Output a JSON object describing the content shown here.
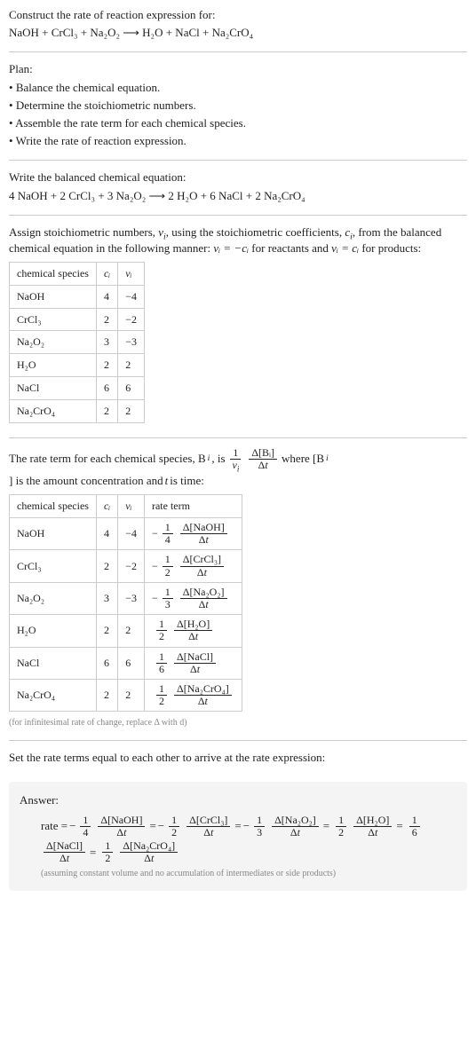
{
  "intro": {
    "line1": "Construct the rate of reaction expression for:",
    "reaction": "NaOH + CrCl₃ + Na₂O₂ ⟶ H₂O + NaCl + Na₂CrO₄"
  },
  "plan": {
    "heading": "Plan:",
    "items": [
      "Balance the chemical equation.",
      "Determine the stoichiometric numbers.",
      "Assemble the rate term for each chemical species.",
      "Write the rate of reaction expression."
    ]
  },
  "balanced": {
    "heading": "Write the balanced chemical equation:",
    "equation": "4 NaOH + 2 CrCl₃ + 3 Na₂O₂ ⟶ 2 H₂O + 6 NaCl + 2 Na₂CrO₄"
  },
  "stoich": {
    "text_a": "Assign stoichiometric numbers, ",
    "nu": "ν",
    "sub_i": "i",
    "text_b": ", using the stoichiometric coefficients, ",
    "c": "c",
    "text_c": ", from the balanced chemical equation in the following manner: ",
    "rel_react": "νᵢ = −cᵢ",
    "text_d": " for reactants and ",
    "rel_prod": "νᵢ = cᵢ",
    "text_e": " for products:",
    "headers": [
      "chemical species",
      "cᵢ",
      "νᵢ"
    ],
    "rows": [
      {
        "species": "NaOH",
        "c": "4",
        "nu": "−4"
      },
      {
        "species": "CrCl₃",
        "c": "2",
        "nu": "−2"
      },
      {
        "species": "Na₂O₂",
        "c": "3",
        "nu": "−3"
      },
      {
        "species": "H₂O",
        "c": "2",
        "nu": "2"
      },
      {
        "species": "NaCl",
        "c": "6",
        "nu": "6"
      },
      {
        "species": "Na₂CrO₄",
        "c": "2",
        "nu": "2"
      }
    ]
  },
  "rateterm": {
    "text_a": "The rate term for each chemical species, B",
    "text_b": ", is ",
    "one": "1",
    "delta_b": "Δ[Bᵢ]",
    "delta_t": "Δt",
    "text_c": " where [B",
    "text_d": "] is the amount concentration and ",
    "t": "t",
    "text_e": " is time:",
    "headers": [
      "chemical species",
      "cᵢ",
      "νᵢ",
      "rate term"
    ],
    "rows": [
      {
        "species": "NaOH",
        "c": "4",
        "nu": "−4",
        "sign": "−",
        "fn": "1",
        "fd": "4",
        "dn": "Δ[NaOH]",
        "dd": "Δt"
      },
      {
        "species": "CrCl₃",
        "c": "2",
        "nu": "−2",
        "sign": "−",
        "fn": "1",
        "fd": "2",
        "dn": "Δ[CrCl₃]",
        "dd": "Δt"
      },
      {
        "species": "Na₂O₂",
        "c": "3",
        "nu": "−3",
        "sign": "−",
        "fn": "1",
        "fd": "3",
        "dn": "Δ[Na₂O₂]",
        "dd": "Δt"
      },
      {
        "species": "H₂O",
        "c": "2",
        "nu": "2",
        "sign": "",
        "fn": "1",
        "fd": "2",
        "dn": "Δ[H₂O]",
        "dd": "Δt"
      },
      {
        "species": "NaCl",
        "c": "6",
        "nu": "6",
        "sign": "",
        "fn": "1",
        "fd": "6",
        "dn": "Δ[NaCl]",
        "dd": "Δt"
      },
      {
        "species": "Na₂CrO₄",
        "c": "2",
        "nu": "2",
        "sign": "",
        "fn": "1",
        "fd": "2",
        "dn": "Δ[Na₂CrO₄]",
        "dd": "Δt"
      }
    ],
    "note": "(for infinitesimal rate of change, replace Δ with d)"
  },
  "final": {
    "heading": "Set the rate terms equal to each other to arrive at the rate expression:"
  },
  "answer": {
    "title": "Answer:",
    "rate_label": "rate = ",
    "eq": " = ",
    "terms": [
      {
        "sign": "−",
        "fn": "1",
        "fd": "4",
        "dn": "Δ[NaOH]",
        "dd": "Δt"
      },
      {
        "sign": "−",
        "fn": "1",
        "fd": "2",
        "dn": "Δ[CrCl₃]",
        "dd": "Δt"
      },
      {
        "sign": "−",
        "fn": "1",
        "fd": "3",
        "dn": "Δ[Na₂O₂]",
        "dd": "Δt"
      },
      {
        "sign": "",
        "fn": "1",
        "fd": "2",
        "dn": "Δ[H₂O]",
        "dd": "Δt"
      },
      {
        "sign": "",
        "fn": "1",
        "fd": "6",
        "dn": "Δ[NaCl]",
        "dd": "Δt"
      },
      {
        "sign": "",
        "fn": "1",
        "fd": "2",
        "dn": "Δ[Na₂CrO₄]",
        "dd": "Δt"
      }
    ],
    "note": "(assuming constant volume and no accumulation of intermediates or side products)"
  }
}
